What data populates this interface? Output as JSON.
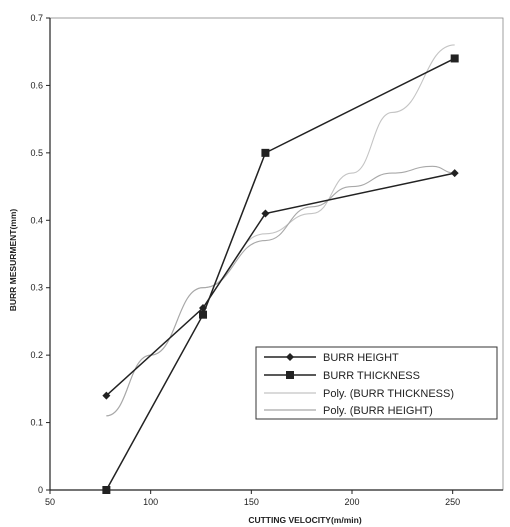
{
  "chart_data": {
    "type": "line",
    "title": "",
    "xlabel": "CUTTING VELOCITY(m/min)",
    "ylabel": "BURR MESURMENT(mm)",
    "xlim": [
      50,
      275
    ],
    "ylim": [
      0,
      0.7
    ],
    "x_ticks": [
      "50",
      "100",
      "150",
      "200",
      "250"
    ],
    "y_ticks": [
      "0",
      "0.1",
      "0.2",
      "0.3",
      "0.4",
      "0.5",
      "0.6",
      "0.7"
    ],
    "grid": false,
    "legend_position": "bottom-right",
    "series": [
      {
        "name": "BURR HEIGHT",
        "marker": "diamond",
        "color": "#222222",
        "x": [
          78,
          126,
          157,
          251
        ],
        "y": [
          0.14,
          0.27,
          0.41,
          0.47
        ]
      },
      {
        "name": "BURR THICKNESS",
        "marker": "square",
        "color": "#222222",
        "x": [
          78,
          126,
          157,
          251
        ],
        "y": [
          0.0,
          0.26,
          0.5,
          0.64
        ]
      }
    ],
    "trendlines": [
      {
        "name": "Poly. (BURR THICKNESS)",
        "color": "#c4c4c4",
        "x": [
          78,
          100,
          126,
          157,
          180,
          200,
          220,
          251
        ],
        "y": [
          0.11,
          0.2,
          0.3,
          0.38,
          0.41,
          0.47,
          0.56,
          0.66
        ]
      },
      {
        "name": "Poly. (BURR HEIGHT)",
        "color": "#a8a8a8",
        "x": [
          78,
          100,
          126,
          157,
          180,
          200,
          220,
          240,
          251
        ],
        "y": [
          0.11,
          0.2,
          0.3,
          0.37,
          0.42,
          0.45,
          0.47,
          0.48,
          0.47
        ]
      }
    ]
  }
}
